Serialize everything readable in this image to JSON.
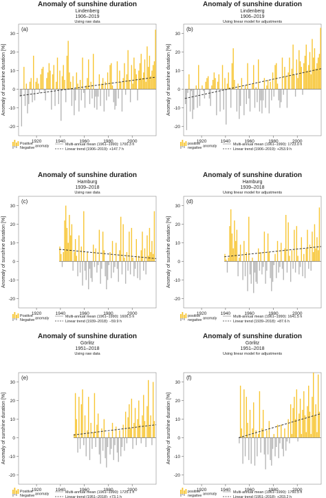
{
  "chart_data": [
    {
      "type": "bar",
      "panel_label": "(a)",
      "title": "Anomaly of sunshine duration",
      "station": "Lindenberg",
      "period": "1906–2019",
      "note": "Using raw data",
      "ylabel": "Anomaly of sunshine duration [%]",
      "xlim": [
        1905,
        2020
      ],
      "ylim": [
        -25,
        35
      ],
      "x_ticks": [
        1920,
        1940,
        1960,
        1980,
        2000
      ],
      "y_ticks": [
        -20,
        -10,
        0,
        10,
        20,
        30
      ],
      "start_year": 1906,
      "values": [
        -4,
        -20,
        0,
        12,
        -9,
        3,
        -13,
        -8,
        4,
        6,
        -7,
        18,
        -6,
        4,
        6,
        3,
        -2,
        8,
        11,
        12,
        -1,
        -6,
        6,
        9,
        14,
        10,
        -11,
        8,
        13,
        -9,
        4,
        17,
        -8,
        10,
        -17,
        7,
        13,
        5,
        -7,
        18,
        26,
        9,
        4,
        -9,
        7,
        -14,
        -6,
        9,
        3,
        -12,
        5,
        -6,
        17,
        -2,
        -10,
        2,
        6,
        16,
        -8,
        4,
        -5,
        19,
        -10,
        -4,
        -11,
        -4,
        8,
        -9,
        3,
        6,
        -12,
        4,
        -6,
        9,
        -4,
        13,
        14,
        2,
        -7,
        -11,
        -9,
        15,
        -5,
        10,
        4,
        -12,
        6,
        14,
        -3,
        8,
        21,
        5,
        -7,
        13,
        3,
        17,
        11,
        8,
        -6,
        10,
        14,
        19,
        6,
        9,
        16,
        4,
        23,
        12,
        18,
        7,
        10,
        13,
        15,
        32
      ],
      "trend": {
        "label": "Linear trend (1906–2019): +147.7 h",
        "y_start": -3.5,
        "y_end": 6.5
      },
      "legend": {
        "positive": "Positive",
        "negative": "Negative",
        "anomaly": "anomaly",
        "mean": "Multi-annual mean (1961–1990): 1700.3 h"
      }
    },
    {
      "type": "bar",
      "panel_label": "(b)",
      "title": "Anomaly of sunshine duration",
      "station": "Lindenberg",
      "period": "1906–2019",
      "note": "Using linear model for adjustments",
      "ylabel": "Anomaly of sunshine duration [%]",
      "xlim": [
        1905,
        2020
      ],
      "ylim": [
        -25,
        35
      ],
      "x_ticks": [
        1920,
        1940,
        1960,
        1980,
        2000
      ],
      "y_ticks": [
        -20,
        -10,
        0,
        10,
        20,
        30
      ],
      "start_year": 1906,
      "values": [
        -8,
        -22,
        -2,
        8,
        -12,
        -1,
        -16,
        -11,
        0,
        2,
        -10,
        13,
        -9,
        0,
        2,
        -1,
        -5,
        4,
        6,
        7,
        -5,
        -9,
        2,
        5,
        9,
        6,
        -14,
        4,
        8,
        -12,
        0,
        13,
        -11,
        6,
        -19,
        3,
        9,
        1,
        -10,
        14,
        22,
        5,
        0,
        -12,
        3,
        -16,
        -9,
        6,
        0,
        -14,
        2,
        -8,
        14,
        -5,
        -12,
        0,
        3,
        13,
        -10,
        1,
        -7,
        16,
        -12,
        -6,
        -13,
        -6,
        6,
        -10,
        2,
        5,
        -13,
        4,
        -6,
        9,
        -4,
        13,
        14,
        3,
        -6,
        -10,
        -7,
        17,
        -3,
        12,
        7,
        -10,
        9,
        17,
        0,
        11,
        24,
        8,
        -4,
        16,
        6,
        21,
        15,
        12,
        -3,
        14,
        18,
        24,
        10,
        13,
        20,
        8,
        27,
        17,
        22,
        11,
        14,
        17,
        19,
        33
      ],
      "trend": {
        "label": "Linear trend (1906–2019): +253.9 h",
        "y_start": -5,
        "y_end": 11
      },
      "legend": {
        "positive": "positive",
        "negative": "negative",
        "anomaly": "anomaly",
        "mean": "Multi-annual mean (1961–1990): 1723.0 h"
      }
    },
    {
      "type": "bar",
      "panel_label": "(c)",
      "title": "Anomaly of sunshine duration",
      "station": "Hamburg",
      "period": "1939–2018",
      "note": "Using raw data",
      "ylabel": "Anomaly of sunshine duration [%]",
      "xlim": [
        1905,
        2020
      ],
      "ylim": [
        -25,
        35
      ],
      "x_ticks": [
        1920,
        1940,
        1960,
        1980,
        2000
      ],
      "y_ticks": [
        -20,
        -10,
        0,
        10,
        20,
        30
      ],
      "start_year": 1939,
      "values": [
        8,
        4,
        -3,
        5,
        22,
        30,
        18,
        10,
        25,
        14,
        20,
        -5,
        5,
        12,
        3,
        -8,
        14,
        -6,
        8,
        -13,
        27,
        -5,
        -10,
        5,
        -15,
        -4,
        -9,
        -11,
        9,
        -3,
        7,
        -6,
        -2,
        17,
        -12,
        -4,
        16,
        6,
        -8,
        -15,
        -10,
        -2,
        5,
        -9,
        11,
        -6,
        -3,
        10,
        -4,
        -11,
        6,
        24,
        -7,
        20,
        2,
        -12,
        5,
        -5,
        16,
        -7,
        18,
        2,
        -8,
        -4,
        12,
        -9,
        3,
        -10,
        6,
        16,
        -5,
        7,
        -7,
        14,
        3,
        18,
        5,
        11,
        4,
        27
      ],
      "trend": {
        "label": "Linear trend (1939–2018): −59.9 h",
        "y_start": 6.5,
        "y_end": 1.5
      },
      "legend": {
        "positive": "Positive",
        "negative": "Negative",
        "anomaly": "anomaly",
        "mean": "Multi-annual mean (1961–1990): 1606.5 h"
      }
    },
    {
      "type": "bar",
      "panel_label": "(d)",
      "title": "Anomaly of sunshine duration",
      "station": "Hamburg",
      "period": "1939–2018",
      "note": "Using linear model for adjustments",
      "ylabel": "Anomaly of sunshine duration [%]",
      "xlim": [
        1905,
        2020
      ],
      "ylim": [
        -25,
        35
      ],
      "x_ticks": [
        1920,
        1940,
        1960,
        1980,
        2000
      ],
      "y_ticks": [
        -20,
        -10,
        0,
        10,
        20,
        30
      ],
      "start_year": 1939,
      "values": [
        4,
        1,
        -6,
        2,
        19,
        28,
        15,
        7,
        22,
        11,
        17,
        -8,
        2,
        9,
        0,
        -10,
        11,
        -8,
        5,
        -16,
        24,
        -7,
        -12,
        2,
        -17,
        -6,
        -11,
        -12,
        7,
        -5,
        5,
        -7,
        -3,
        16,
        -12,
        -5,
        15,
        5,
        -9,
        -16,
        -11,
        -2,
        4,
        -9,
        11,
        -6,
        -3,
        10,
        -4,
        -10,
        7,
        25,
        -6,
        21,
        3,
        -11,
        6,
        -4,
        17,
        -6,
        19,
        3,
        -7,
        -3,
        13,
        -8,
        4,
        -9,
        7,
        17,
        -4,
        9,
        -5,
        16,
        5,
        20,
        7,
        13,
        6,
        29
      ],
      "trend": {
        "label": "Linear trend (1939–2018): +87.6 h",
        "y_start": 2.5,
        "y_end": 8
      },
      "legend": {
        "positive": "positive",
        "negative": "negative",
        "anomaly": "anomaly",
        "mean": "Multi-annual mean (1961–1990): 1641.5 h"
      }
    },
    {
      "type": "bar",
      "panel_label": "(e)",
      "title": "Anomaly of sunshine duration",
      "station": "Görlitz",
      "period": "1951–2018",
      "note": "Using raw data",
      "ylabel": "Anomaly of sunshine duration [%]",
      "xlim": [
        1905,
        2020
      ],
      "ylim": [
        -25,
        35
      ],
      "x_ticks": [
        1920,
        1940,
        1960,
        1980,
        2000
      ],
      "y_ticks": [
        -20,
        -10,
        0,
        10,
        20,
        30
      ],
      "start_year": 1951,
      "values": [
        2,
        24,
        10,
        -8,
        22,
        -6,
        18,
        26,
        -4,
        12,
        -10,
        4,
        22,
        -12,
        8,
        -6,
        3,
        24,
        -5,
        7,
        13,
        -9,
        -14,
        5,
        -7,
        10,
        -11,
        -16,
        -5,
        3,
        -9,
        -6,
        8,
        -12,
        -4,
        6,
        -8,
        -13,
        4,
        -10,
        -5,
        7,
        -7,
        14,
        -3,
        11,
        18,
        5,
        21,
        -6,
        8,
        16,
        -4,
        10,
        20,
        7,
        -3,
        12,
        23,
        9,
        -5,
        17,
        31,
        6,
        12,
        -4,
        30,
        9
      ],
      "trend": {
        "label": "Linear trend (1951–2018): +73.1 h",
        "y_start": 1.5,
        "y_end": 7
      },
      "legend": {
        "positive": "Positive",
        "negative": "Negative",
        "anomaly": "anomaly",
        "mean": "Multi-annual mean (1961–1990): 1725.1 h"
      }
    },
    {
      "type": "bar",
      "panel_label": "(f)",
      "title": "Anomaly of sunshine duration",
      "station": "Görlitz",
      "period": "1951–2018",
      "note": "Using linear model for adjustments",
      "ylabel": "Anomaly of sunshine duration [%]",
      "xlim": [
        1905,
        2020
      ],
      "ylim": [
        -25,
        35
      ],
      "x_ticks": [
        1920,
        1940,
        1960,
        1980,
        2000
      ],
      "y_ticks": [
        -20,
        -10,
        0,
        10,
        20,
        30
      ],
      "start_year": 1951,
      "values": [
        -3,
        28,
        5,
        -14,
        26,
        -10,
        22,
        8,
        -12,
        15,
        -14,
        5,
        19,
        -15,
        4,
        -10,
        2,
        25,
        -8,
        5,
        15,
        -9,
        -17,
        4,
        -9,
        9,
        -12,
        -15,
        -6,
        2,
        -10,
        -5,
        7,
        -11,
        -3,
        7,
        -6,
        -10,
        5,
        -7,
        -2,
        10,
        -3,
        18,
        2,
        16,
        22,
        10,
        26,
        -2,
        13,
        21,
        2,
        15,
        25,
        12,
        3,
        17,
        28,
        14,
        2,
        22,
        35,
        12,
        18,
        3,
        34,
        14
      ],
      "trend": {
        "label": "Linear trend (1951–2018): +203.2 h",
        "y_start": 0,
        "y_end": 13
      },
      "legend": {
        "positive": "positive",
        "negative": "negative",
        "anomaly": "anomaly",
        "mean": "Multi-annual mean (1961–1990): 1760.5 h"
      }
    }
  ],
  "colors": {
    "positive": "#f7c42f",
    "negative": "#b5b5b5",
    "trend": "#333333",
    "axis": "#555555"
  }
}
